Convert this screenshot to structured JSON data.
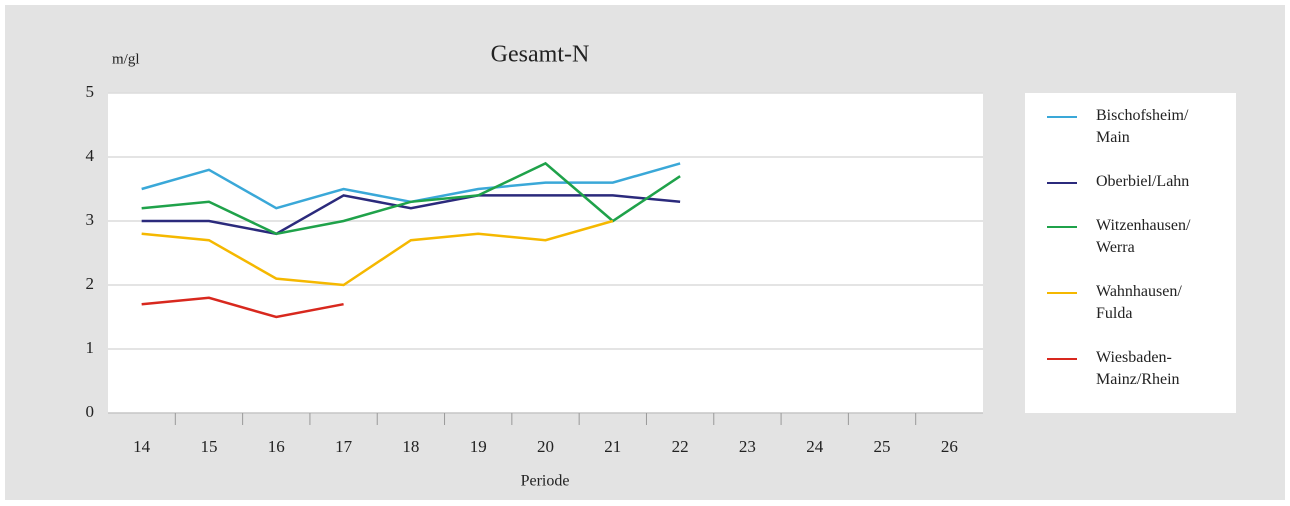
{
  "chart_data": {
    "type": "line",
    "title": "Gesamt-N",
    "y_label": "m/gl",
    "x_label": "Periode",
    "categories": [
      "14",
      "15",
      "16",
      "17",
      "18",
      "19",
      "20",
      "21",
      "22",
      "23",
      "24",
      "25",
      "26"
    ],
    "ylim": [
      0,
      5
    ],
    "yticks": [
      0,
      1,
      2,
      3,
      4,
      5
    ],
    "grid": true,
    "legend": "right",
    "series": [
      {
        "name": "Bischofsheim/\nMain",
        "color": "#3aa8d8",
        "values": [
          3.5,
          3.8,
          3.2,
          3.5,
          3.3,
          3.5,
          3.6,
          3.6,
          3.9,
          null,
          null,
          null,
          null
        ]
      },
      {
        "name": "Oberbiel/Lahn",
        "color": "#2b2a7c",
        "values": [
          3.0,
          3.0,
          2.8,
          3.4,
          3.2,
          3.4,
          3.4,
          3.4,
          3.3,
          null,
          null,
          null,
          null
        ]
      },
      {
        "name": "Witzenhausen/\nWerra",
        "color": "#1fa24a",
        "values": [
          3.2,
          3.3,
          2.8,
          3.0,
          3.3,
          3.4,
          3.9,
          3.0,
          3.7,
          null,
          null,
          null,
          null
        ]
      },
      {
        "name": "Wahnhausen/\nFulda",
        "color": "#f5b800",
        "values": [
          2.8,
          2.7,
          2.1,
          2.0,
          2.7,
          2.8,
          2.7,
          3.0,
          null,
          null,
          null,
          null,
          null
        ]
      },
      {
        "name": "Wiesbaden-\nMainz/Rhein",
        "color": "#d8281e",
        "values": [
          1.7,
          1.8,
          1.5,
          1.7,
          null,
          null,
          null,
          null,
          null,
          null,
          null,
          null,
          null
        ]
      }
    ]
  }
}
